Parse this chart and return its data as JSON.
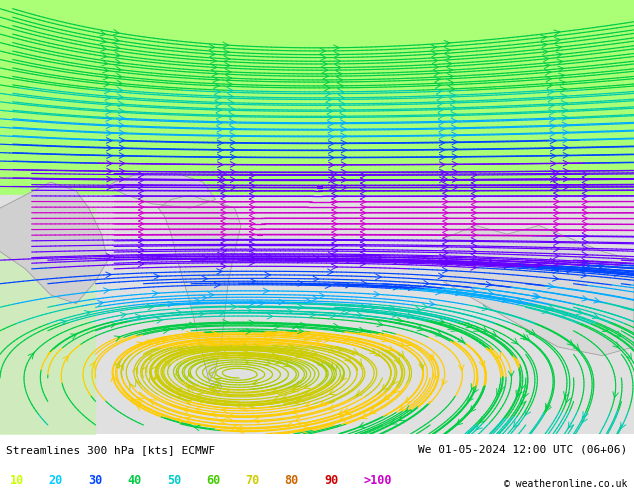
{
  "title_left": "Streamlines 300 hPa [kts] ECMWF",
  "title_right": "We 01-05-2024 12:00 UTC (06+06)",
  "copyright": "© weatheronline.co.uk",
  "legend_values": [
    "10",
    "20",
    "30",
    "40",
    "50",
    "60",
    "70",
    "80",
    "90",
    ">100"
  ],
  "legend_colors": [
    "#ccff00",
    "#00ccff",
    "#0044ff",
    "#00cc44",
    "#00cccc",
    "#44cc00",
    "#cccc00",
    "#cc6600",
    "#cc0000",
    "#cc00cc"
  ],
  "bottom_colors": [
    "#aaee00",
    "#00aaff",
    "#0022ff",
    "#00aa44",
    "#00aaaa",
    "#44aa00",
    "#aaaa00",
    "#aa6600",
    "#aa0000",
    "#aa00aa"
  ],
  "figsize": [
    6.34,
    4.9
  ],
  "dpi": 100,
  "bottom_bar_height": 0.115,
  "bg_top_color": "#aaff66",
  "bg_bottom_color": "#e8e8e8",
  "land_color": "#dddddd",
  "sea_color": "#ccff99"
}
